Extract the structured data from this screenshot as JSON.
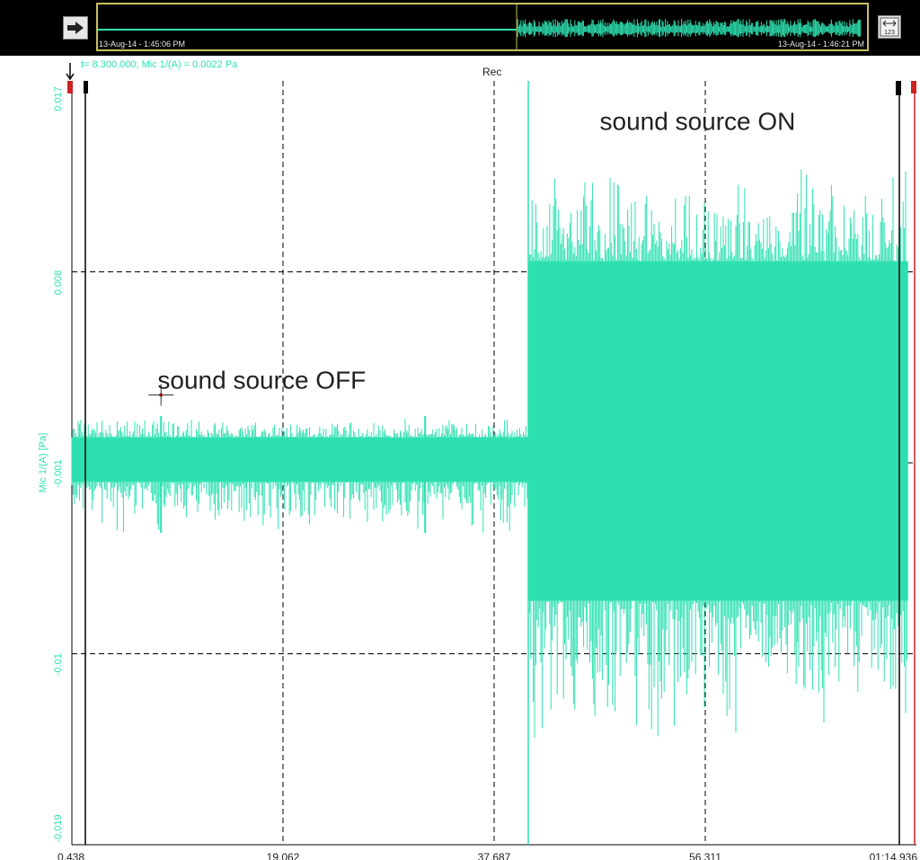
{
  "toolbar": {
    "overview_start_time": "13-Aug-14 - 1:45:06 PM",
    "overview_end_time": "13-Aug-14 - 1:46:21 PM",
    "nav_icon": "right-arrow-icon",
    "fit_icon": "fit-range-icon",
    "fit_icon_text": "123"
  },
  "cursor_readout": "t= 8.300.000; Mic 1/(A) = 0.0022 Pa",
  "rec_label": "Rec",
  "colors": {
    "signal": "#2ee0b0",
    "grid": "#000000",
    "marker_red": "#cc2222"
  },
  "chart_data": {
    "type": "line",
    "title": "",
    "xlabel": "",
    "ylabel": "Mic 1/(A) [Pa]",
    "x_unit": "s",
    "xlim": [
      0.438,
      74.936
    ],
    "ylim": [
      -0.019,
      0.017
    ],
    "x_ticks": [
      {
        "value": 0.438,
        "label": "0.438"
      },
      {
        "value": 19.062,
        "label": "19.062"
      },
      {
        "value": 37.687,
        "label": "37.687"
      },
      {
        "value": 56.311,
        "label": "56.311"
      },
      {
        "value": 74.936,
        "label": "01:14.936"
      }
    ],
    "y_ticks": [
      {
        "value": 0.017,
        "label": "0.017"
      },
      {
        "value": 0.008,
        "label": "0.008"
      },
      {
        "value": -0.001,
        "label": "-0.001"
      },
      {
        "value": -0.01,
        "label": "-0.01"
      },
      {
        "value": -0.019,
        "label": "-0.019"
      }
    ],
    "grid": true,
    "cursor": {
      "x": 8.3,
      "y": 0.0022
    },
    "rec_marker_x": 40.7,
    "series": [
      {
        "segments": [
          {
            "x_start": 0.438,
            "x_end": 40.7,
            "max": 0.0002,
            "min": -0.0019,
            "peak_max": 0.0012,
            "peak_min": -0.0043,
            "spikes_x": [
              8.3,
              31.6
            ]
          },
          {
            "x_start": 40.7,
            "x_end": 74.2,
            "max": 0.0085,
            "min": -0.0075,
            "peak_max": 0.0132,
            "peak_min": -0.0145
          }
        ]
      }
    ],
    "annotations": [
      {
        "text": "sound source ON",
        "x": 47.0,
        "y": 0.0147
      },
      {
        "text": "sound source OFF",
        "x": 8.0,
        "y": 0.0025
      }
    ]
  }
}
